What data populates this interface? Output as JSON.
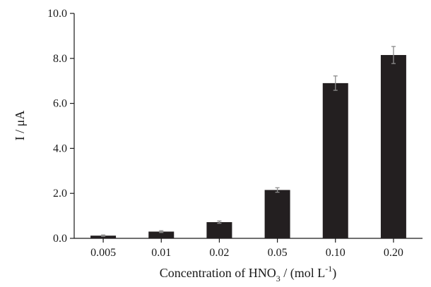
{
  "chart_data": {
    "type": "bar",
    "categories": [
      "0.005",
      "0.01",
      "0.02",
      "0.05",
      "0.10",
      "0.20"
    ],
    "values": [
      0.12,
      0.3,
      0.72,
      2.15,
      6.9,
      8.15
    ],
    "errors": [
      0.03,
      0.04,
      0.05,
      0.1,
      0.32,
      0.38
    ],
    "y_ticks": [
      "0.0",
      "2.0",
      "4.0",
      "6.0",
      "8.0",
      "10.0"
    ],
    "ylim": [
      0,
      10
    ],
    "title": "",
    "xlabel": {
      "main": "Concentration of HNO",
      "subscript": "3",
      "middle": " / (mol L",
      "superscript": "-1",
      "end": ")"
    },
    "ylabel": "I / μA",
    "bar_color": "#231f20",
    "error_bar_color": "#8c8c8c",
    "grid": false,
    "legend": "none"
  }
}
